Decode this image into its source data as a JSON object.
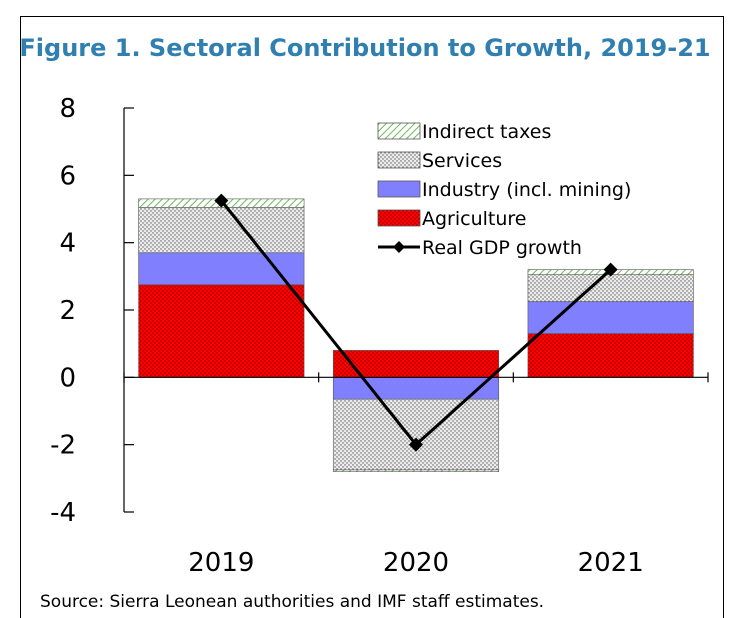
{
  "page": {
    "title": "Figure 1. Sectoral Contribution to Growth, 2019-21",
    "source": "Source: Sierra Leonean authorities and IMF staff estimates."
  },
  "chart_data": {
    "type": "bar",
    "stacked": true,
    "categories": [
      "2019",
      "2020",
      "2021"
    ],
    "series": [
      {
        "name": "Agriculture",
        "kind": "bar",
        "values": [
          2.75,
          0.8,
          1.3
        ],
        "color": "#ff0000"
      },
      {
        "name": "Industry (incl. mining)",
        "kind": "bar",
        "values": [
          0.95,
          -0.65,
          0.95
        ],
        "color": "#8080ff"
      },
      {
        "name": "Services",
        "kind": "bar",
        "values": [
          1.35,
          -2.1,
          0.8
        ],
        "color": "#d9d9d9"
      },
      {
        "name": "Indirect taxes",
        "kind": "bar",
        "values": [
          0.25,
          -0.05,
          0.15
        ],
        "color": "#b6e3a8"
      },
      {
        "name": "Real GDP growth",
        "kind": "line",
        "values": [
          5.25,
          -2.0,
          3.2
        ],
        "color": "#000000"
      }
    ],
    "legend_order": [
      "Indirect taxes",
      "Services",
      "Industry (incl. mining)",
      "Agriculture",
      "Real GDP growth"
    ],
    "ylim": [
      -4,
      8
    ],
    "yticks": [
      "8",
      "6",
      "4",
      "2",
      "0",
      "-2",
      "-4"
    ],
    "legend_position": "top-right",
    "grid": false
  }
}
